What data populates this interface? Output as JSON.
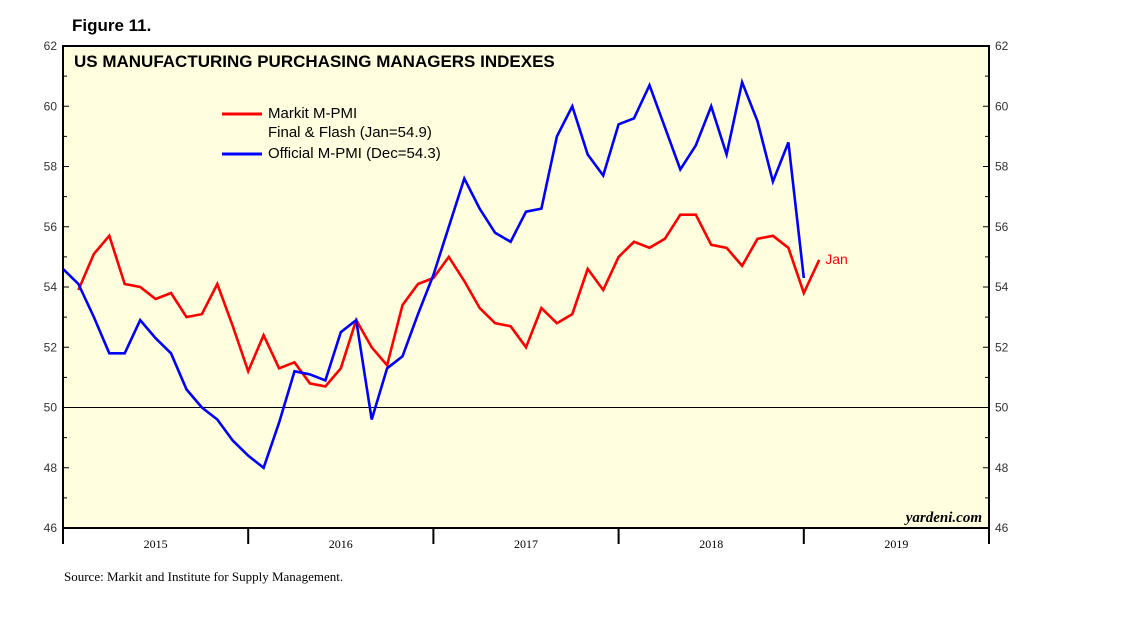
{
  "figure_label": "Figure 11.",
  "source_note": "Source: Markit and Institute for Supply Management.",
  "watermark": "yardeni.com",
  "colors": {
    "plot_bg": "#ffffe0",
    "markit": "#ff0000",
    "official": "#0000ff",
    "axis": "#000000"
  },
  "chart_data": {
    "type": "line",
    "title": "US MANUFACTURING PURCHASING MANAGERS INDEXES",
    "ylim": [
      46,
      62
    ],
    "yticks": [
      46,
      48,
      50,
      52,
      54,
      56,
      58,
      60,
      62
    ],
    "reference_line": 50,
    "xlim": [
      2014.5,
      2019.5
    ],
    "year_labels": [
      "2015",
      "2016",
      "2017",
      "2018",
      "2019"
    ],
    "year_label_positions": [
      2015,
      2016,
      2017,
      2018,
      2019
    ],
    "year_dividers": [
      2014.5,
      2015.5,
      2016.5,
      2017.5,
      2018.5,
      2019.5
    ],
    "legend": {
      "placement": "top-left"
    },
    "series": [
      {
        "name": "Markit M-PMI",
        "legend_lines": [
          "Markit M-PMI",
          "Final & Flash (Jan=54.9)"
        ],
        "color": "markit",
        "start": 2014.5833,
        "values": [
          53.9,
          55.1,
          55.7,
          54.1,
          54.0,
          53.6,
          53.8,
          53.0,
          53.1,
          54.1,
          52.7,
          51.2,
          52.4,
          51.3,
          51.5,
          50.8,
          50.7,
          51.3,
          52.9,
          52.0,
          51.4,
          53.4,
          54.1,
          54.3,
          55.0,
          54.2,
          53.3,
          52.8,
          52.7,
          52.0,
          53.3,
          52.8,
          53.1,
          54.6,
          53.9,
          55.0,
          55.5,
          55.3,
          55.6,
          56.4,
          56.4,
          55.4,
          55.3,
          54.7,
          55.6,
          55.7,
          55.3,
          53.8,
          54.9
        ]
      },
      {
        "name": "Official M-PMI",
        "legend_lines": [
          "Official M-PMI (Dec=54.3)"
        ],
        "color": "official",
        "start": 2014.5,
        "values": [
          54.6,
          54.1,
          53.0,
          51.8,
          51.8,
          52.9,
          52.3,
          51.8,
          50.6,
          50.0,
          49.6,
          48.9,
          48.4,
          48.0,
          49.5,
          51.2,
          51.1,
          50.9,
          52.5,
          52.9,
          49.6,
          51.3,
          51.7,
          53.1,
          54.4,
          56.0,
          57.6,
          56.6,
          55.8,
          55.5,
          56.5,
          56.6,
          59.0,
          60.0,
          58.4,
          57.7,
          59.4,
          59.6,
          60.7,
          59.3,
          57.9,
          58.7,
          60.0,
          58.4,
          60.8,
          59.5,
          57.5,
          58.8,
          54.3
        ]
      }
    ],
    "annotations": [
      {
        "text": "Jan",
        "series": "Markit M-PMI"
      }
    ]
  }
}
